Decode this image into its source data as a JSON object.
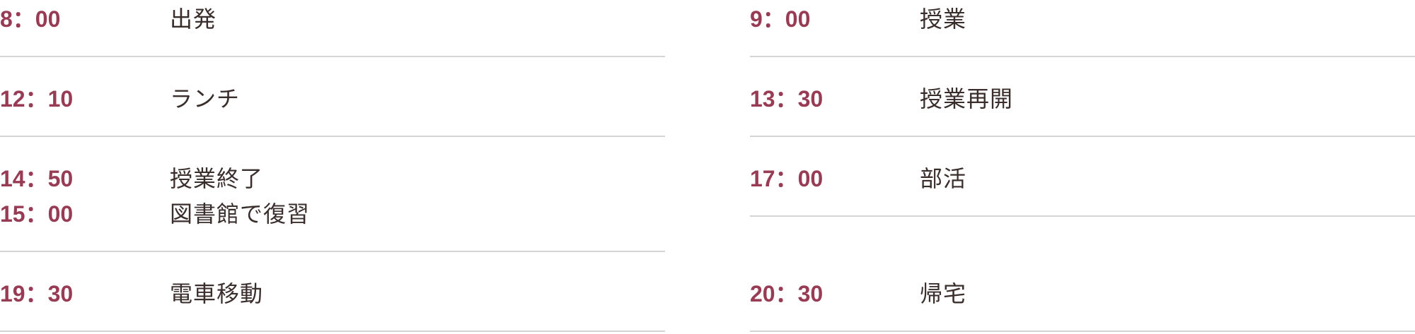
{
  "colors": {
    "time_text": "#983b55",
    "label_text": "#392e2c",
    "divider": "#d4d4d4",
    "background": "#ffffff"
  },
  "schedule": {
    "columns": [
      {
        "name": "left",
        "rows": [
          {
            "entries": [
              {
                "time": "8：00",
                "label": "出発"
              }
            ]
          },
          {
            "entries": [
              {
                "time": "12：10",
                "label": "ランチ"
              }
            ]
          },
          {
            "entries": [
              {
                "time": "14：50",
                "label": "授業終了"
              },
              {
                "time": "15：00",
                "label": "図書館で復習"
              }
            ]
          },
          {
            "entries": [
              {
                "time": "19：30",
                "label": "電車移動"
              }
            ]
          }
        ]
      },
      {
        "name": "right",
        "rows": [
          {
            "entries": [
              {
                "time": "9：00",
                "label": "授業"
              }
            ]
          },
          {
            "entries": [
              {
                "time": "13：30",
                "label": "授業再開"
              }
            ]
          },
          {
            "entries": [
              {
                "time": "17：00",
                "label": "部活"
              }
            ]
          },
          {
            "entries": [
              {
                "time": "20：30",
                "label": "帰宅"
              }
            ]
          }
        ]
      }
    ]
  }
}
